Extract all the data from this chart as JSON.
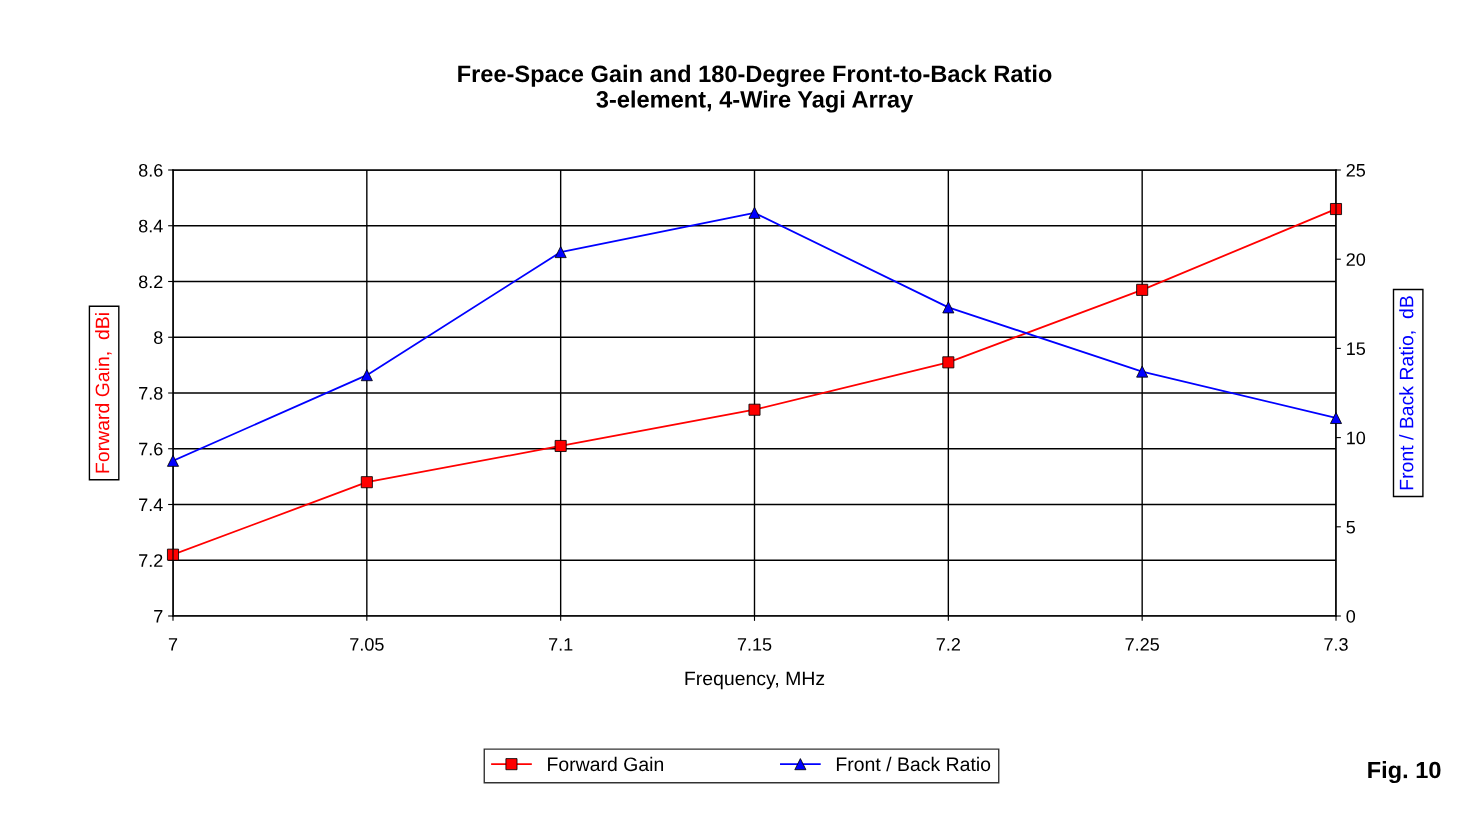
{
  "chart_data": {
    "type": "line",
    "title": "Free-Space Gain and 180-Degree Front-to-Back Ratio\n3-element, 4-Wire Yagi Array",
    "xlabel": "Frequency, MHz",
    "ylabel": "Forward Gain,  dBi",
    "y2label": "Front / Back Ratio,  dB",
    "x": [
      7,
      7.05,
      7.1,
      7.15,
      7.2,
      7.25,
      7.3
    ],
    "series": [
      {
        "name": "Forward Gain",
        "color": "#ff0000",
        "marker": "square",
        "values": [
          7.22,
          7.48,
          7.61,
          7.74,
          7.91,
          8.17,
          8.46
        ]
      },
      {
        "name": "Front / Back Ratio",
        "color": "#0000ff",
        "marker": "triangle",
        "axis": "y2",
        "values": [
          8.7,
          13.5,
          20.4,
          22.6,
          17.3,
          13.7,
          11.1
        ]
      }
    ],
    "xlim": [
      7,
      7.3
    ],
    "xticks": [
      7,
      7.05,
      7.1,
      7.15,
      7.2,
      7.25,
      7.3
    ],
    "ylim": [
      7,
      8.6
    ],
    "yticks": [
      7,
      7.2,
      7.4,
      7.6,
      7.8,
      8,
      8.2,
      8.4,
      8.6
    ],
    "y2lim": [
      0,
      25
    ],
    "y2ticks": [
      0,
      5,
      10,
      15,
      20,
      25
    ],
    "grid": true,
    "legend": "bottom",
    "line_style": "solid",
    "annotations": [
      "Fig. 10"
    ]
  }
}
